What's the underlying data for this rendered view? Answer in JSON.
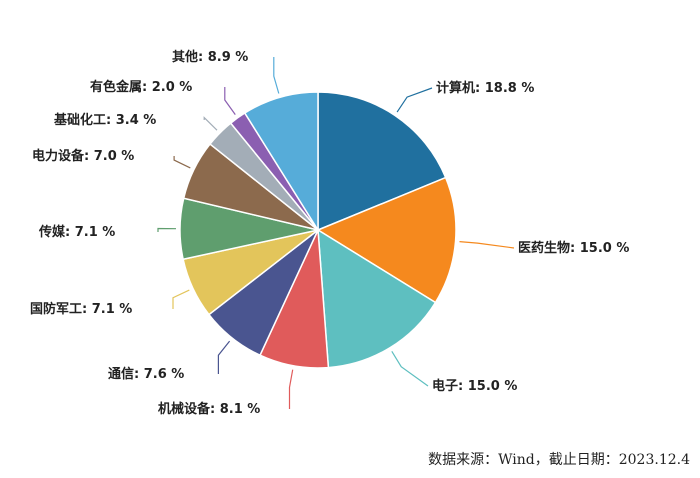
{
  "chart_data": {
    "type": "pie",
    "title": "",
    "unit": "%",
    "slices": [
      {
        "label": "计算机",
        "value": 18.8,
        "display": "计算机: 18.8 %",
        "color": "#20709f"
      },
      {
        "label": "医药生物",
        "value": 15.0,
        "display": "医药生物: 15.0 %",
        "color": "#f5891e"
      },
      {
        "label": "电子",
        "value": 15.0,
        "display": "电子: 15.0 %",
        "color": "#5ebfc0"
      },
      {
        "label": "机械设备",
        "value": 8.1,
        "display": "机械设备: 8.1 %",
        "color": "#e05b5b"
      },
      {
        "label": "通信",
        "value": 7.6,
        "display": "通信: 7.6 %",
        "color": "#4a5590"
      },
      {
        "label": "国防军工",
        "value": 7.1,
        "display": "国防军工: 7.1 %",
        "color": "#e3c55b"
      },
      {
        "label": "传媒",
        "value": 7.1,
        "display": "传媒: 7.1 %",
        "color": "#5f9e6e"
      },
      {
        "label": "电力设备",
        "value": 7.0,
        "display": "电力设备: 7.0 %",
        "color": "#8c6a4d"
      },
      {
        "label": "基础化工",
        "value": 3.4,
        "display": "基础化工: 3.4 %",
        "color": "#a3adb7"
      },
      {
        "label": "有色金属",
        "value": 2.0,
        "display": "有色金属: 2.0 %",
        "color": "#8b5fb1"
      },
      {
        "label": "其他",
        "value": 8.9,
        "display": "其他: 8.9 %",
        "color": "#56acd9"
      }
    ],
    "legend": "none"
  },
  "footer": {
    "source_text": "数据来源：Wind，截止日期：2023.12.4"
  }
}
